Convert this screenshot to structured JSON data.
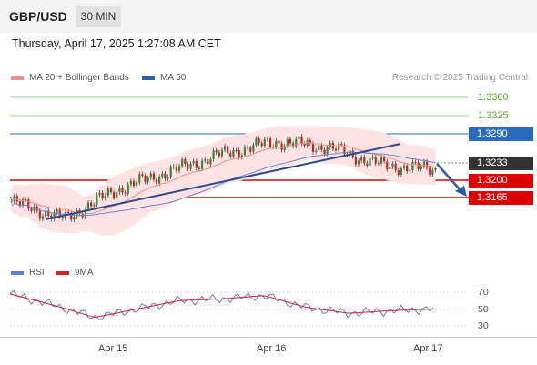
{
  "header": {
    "symbol": "GBP/USD",
    "timeframe": "30 MIN"
  },
  "datetime": "Thursday, April 17, 2025 1:27:08 AM CET",
  "legend": {
    "ma20": "MA 20 + Bollinger Bands",
    "ma50": "MA 50",
    "credit": "Research © 2025 Trading Central"
  },
  "rsi_legend": {
    "rsi": "RSI",
    "ma9": "9MA"
  },
  "levels": {
    "r2": "1.3360",
    "r1": "1.3325",
    "pivot": "1.3290",
    "last": "1.3233",
    "s1": "1.3200",
    "s2": "1.3165"
  },
  "rsi_levels": {
    "upper": "70",
    "mid": "50",
    "lower": "30"
  },
  "x_labels": [
    "Apr 15",
    "Apr 16",
    "Apr 17"
  ],
  "colors": {
    "resistance": "#7cc36a",
    "pivot": "#2a6bbd",
    "last": "#333333",
    "support": "#dd0000",
    "ma20": "#f28c8c",
    "ma50": "#2c5ea8",
    "band": "#fde0e0",
    "trendline": "#2c4a8c",
    "rsi": "#5b7fd6",
    "ma9": "#dd2222"
  },
  "chart_data": {
    "type": "line",
    "title": "GBP/USD",
    "xlabel": "",
    "ylabel": "",
    "x": [
      "Apr 15",
      "Apr 16",
      "Apr 17"
    ],
    "ylim": [
      1.309,
      1.338
    ],
    "series": [
      {
        "name": "MA 20 + Bollinger Bands",
        "values": [
          1.315,
          1.3218,
          1.325
        ]
      },
      {
        "name": "MA 50",
        "values": [
          1.312,
          1.3205,
          1.3255
        ]
      }
    ],
    "price_values": [
      1.318,
      1.315,
      1.32,
      1.323,
      1.326,
      1.328,
      1.327,
      1.324,
      1.3233
    ],
    "levels": [
      1.336,
      1.3325,
      1.329,
      1.3233,
      1.32,
      1.3165
    ],
    "rsi": {
      "name": "RSI",
      "ylim": [
        20,
        80
      ],
      "values": [
        68,
        55,
        40,
        50,
        60,
        62,
        66,
        52,
        45,
        48,
        50
      ],
      "levels": [
        70,
        50,
        30
      ]
    }
  }
}
